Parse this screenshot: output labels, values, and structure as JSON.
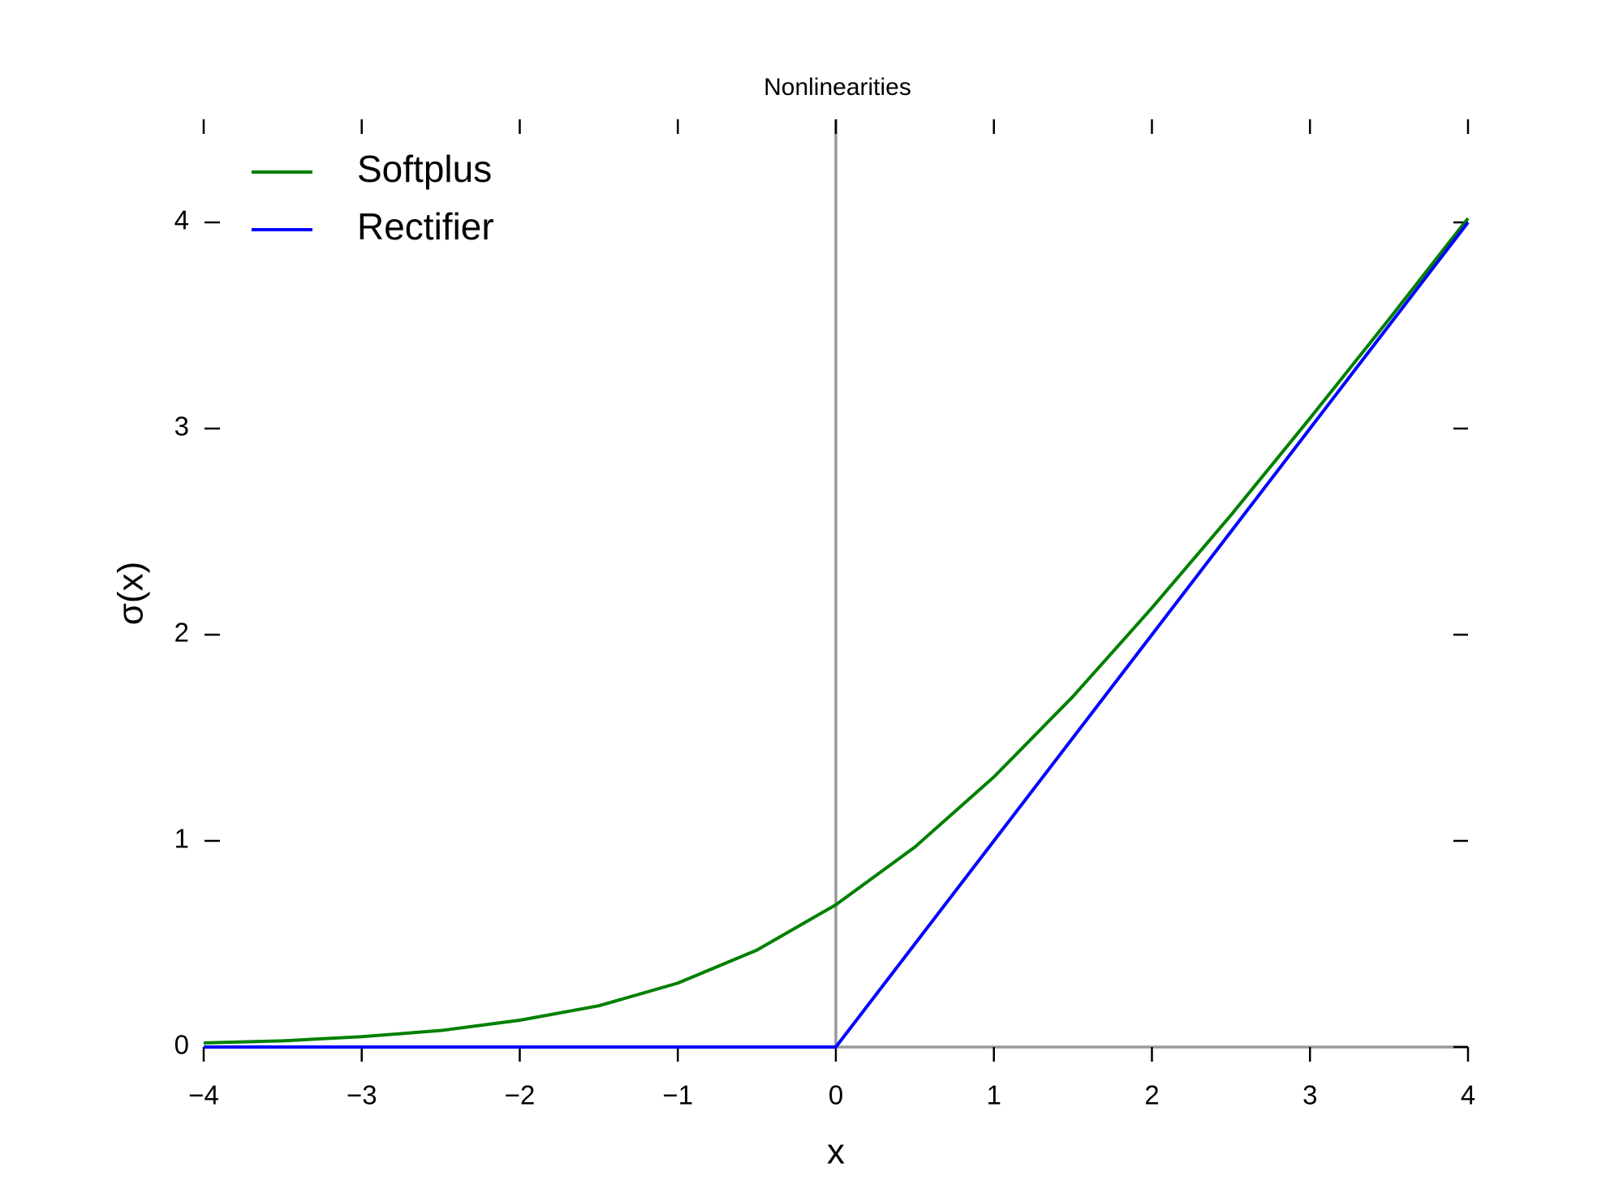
{
  "chart_data": {
    "type": "line",
    "title": "Nonlinearities",
    "x_label": "x",
    "y_label": "σ(x)",
    "x": [
      -4,
      -3.5,
      -3,
      -2.5,
      -2,
      -1.5,
      -1,
      -0.5,
      0,
      0.5,
      1,
      1.5,
      2,
      2.5,
      3,
      3.5,
      4
    ],
    "series": [
      {
        "name": "Softplus",
        "color": "#008000",
        "values": [
          0.02,
          0.03,
          0.05,
          0.08,
          0.13,
          0.2,
          0.31,
          0.47,
          0.69,
          0.97,
          1.31,
          1.7,
          2.13,
          2.58,
          3.05,
          3.53,
          4.02
        ]
      },
      {
        "name": "Rectifier",
        "color": "#0000ff",
        "values": [
          0,
          0,
          0,
          0,
          0,
          0,
          0,
          0,
          0,
          0.5,
          1,
          1.5,
          2,
          2.5,
          3,
          3.5,
          4
        ]
      }
    ],
    "xlim": [
      -4,
      4
    ],
    "ylim": [
      0,
      4.5
    ],
    "xticks": [
      {
        "value": -4,
        "label": "−4"
      },
      {
        "value": -3,
        "label": "−3"
      },
      {
        "value": -2,
        "label": "−2"
      },
      {
        "value": -1,
        "label": "−1"
      },
      0,
      1,
      2,
      3,
      4
    ],
    "yticks": [
      0,
      1,
      2,
      3,
      4
    ],
    "grid": false,
    "legend": "upper-left"
  }
}
